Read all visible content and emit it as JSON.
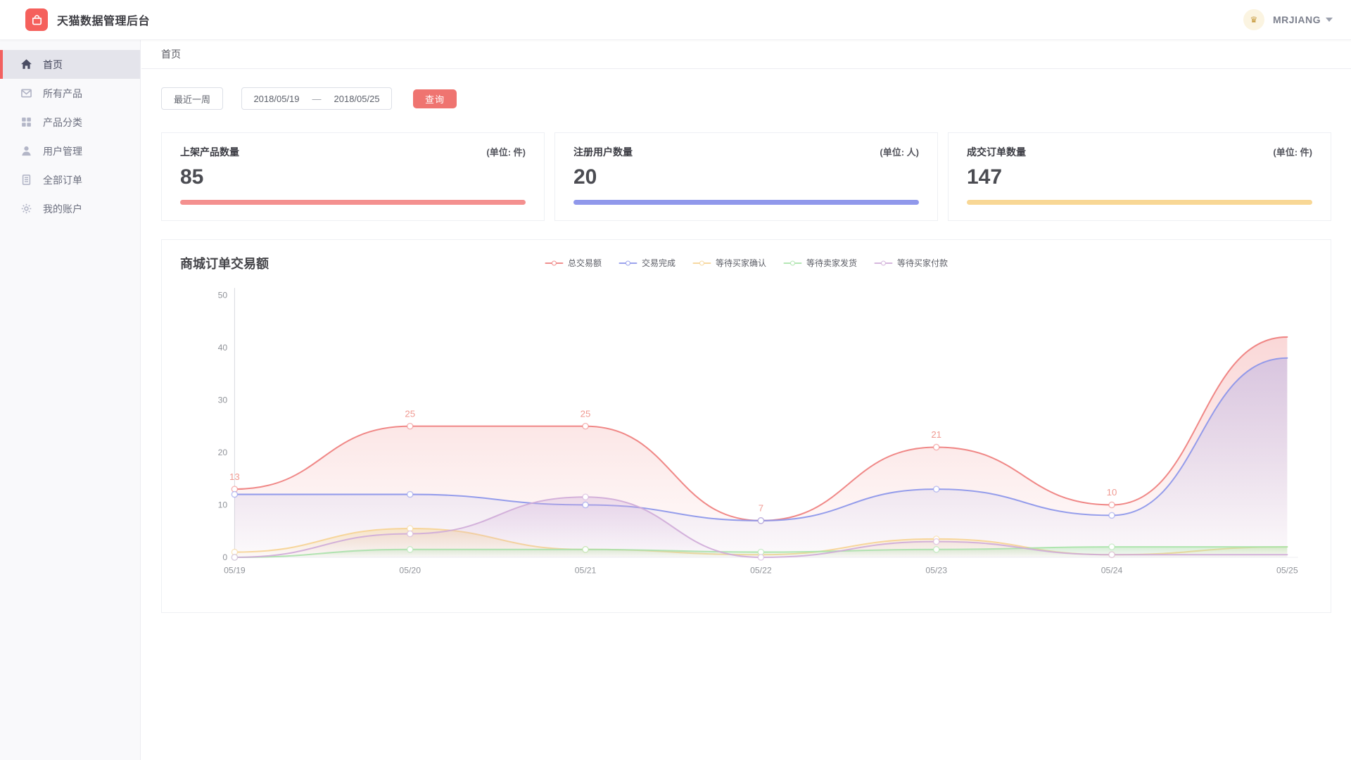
{
  "header": {
    "title": "天猫数据管理后台",
    "user_name": "MRJIANG",
    "logo_color": "#f5605c"
  },
  "sidebar": {
    "items": [
      {
        "id": "home",
        "label": "首页",
        "icon": "home-icon",
        "active": true
      },
      {
        "id": "products",
        "label": "所有产品",
        "icon": "mail-icon",
        "active": false
      },
      {
        "id": "categories",
        "label": "产品分类",
        "icon": "grid-icon",
        "active": false
      },
      {
        "id": "users",
        "label": "用户管理",
        "icon": "user-icon",
        "active": false
      },
      {
        "id": "orders",
        "label": "全部订单",
        "icon": "document-icon",
        "active": false
      },
      {
        "id": "account",
        "label": "我的账户",
        "icon": "gear-icon",
        "active": false
      }
    ]
  },
  "breadcrumb": "首页",
  "filters": {
    "quick_range_label": "最近一周",
    "date_start": "2018/05/19",
    "date_separator": "—",
    "date_end": "2018/05/25",
    "search_label": "查询"
  },
  "stats": [
    {
      "id": "listed-products",
      "label": "上架产品数量",
      "unit": "(单位: 件)",
      "value": "85",
      "bar_color": "#f4908f"
    },
    {
      "id": "registered-users",
      "label": "注册用户数量",
      "unit": "(单位: 人)",
      "value": "20",
      "bar_color": "#9098eb"
    },
    {
      "id": "closed-orders",
      "label": "成交订单数量",
      "unit": "(单位: 件)",
      "value": "147",
      "bar_color": "#f8d795"
    }
  ],
  "chart": {
    "title": "商城订单交易额"
  },
  "chart_data": {
    "type": "area",
    "title": "商城订单交易额",
    "x": [
      "05/19",
      "05/20",
      "05/21",
      "05/22",
      "05/23",
      "05/24",
      "05/25"
    ],
    "series": [
      {
        "name": "总交易额",
        "color": "#ee7c7b",
        "values": [
          13,
          25,
          25,
          7,
          21,
          10,
          42
        ],
        "point_labels": [
          "13",
          "25",
          "25",
          "7",
          "21",
          "10",
          null
        ]
      },
      {
        "name": "交易完成",
        "color": "#8a93ea",
        "values": [
          12,
          12,
          10,
          7,
          13,
          8,
          38
        ]
      },
      {
        "name": "等待买家确认",
        "color": "#f6d392",
        "values": [
          1,
          5.5,
          1.5,
          0.5,
          3.5,
          0.5,
          2
        ]
      },
      {
        "name": "等待卖家发货",
        "color": "#a9e3a9",
        "values": [
          0,
          1.5,
          1.5,
          1,
          1.5,
          2,
          2
        ]
      },
      {
        "name": "等待买家付款",
        "color": "#cfabd8",
        "values": [
          0,
          4.5,
          11.5,
          0,
          3,
          0.5,
          0.5
        ]
      }
    ],
    "ylim": [
      0,
      50
    ],
    "yticks": [
      0,
      10,
      20,
      30,
      40,
      50
    ],
    "legend_position": "top-center",
    "grid": false,
    "label_color": "#f09a92",
    "axis_text_color": "#909399"
  }
}
